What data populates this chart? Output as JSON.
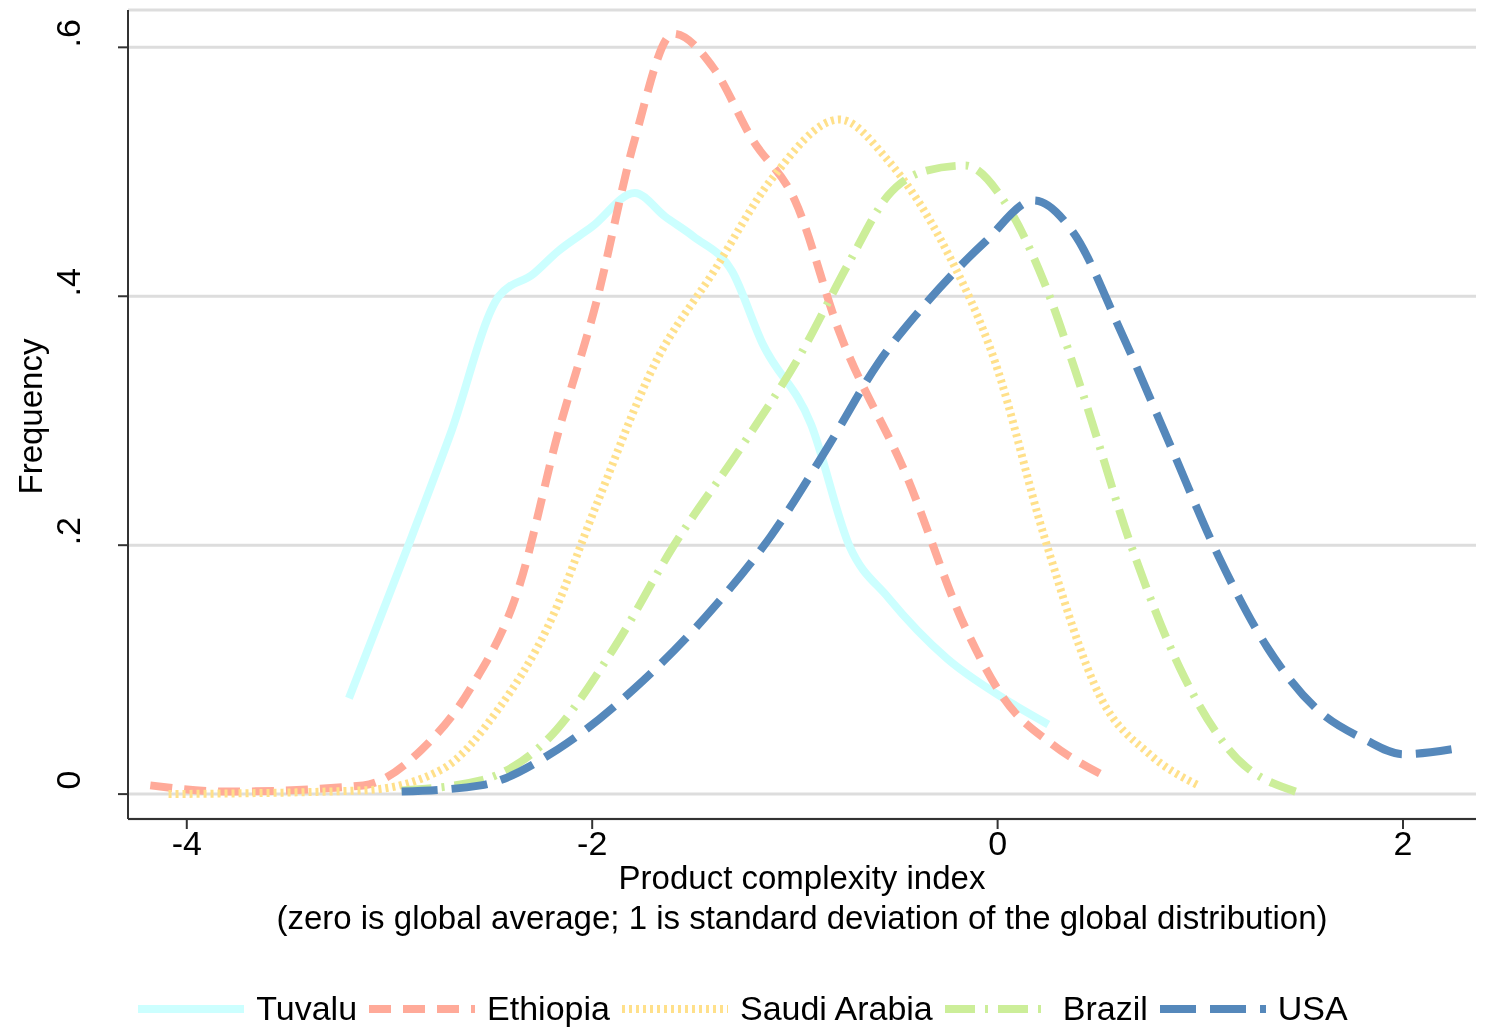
{
  "chart_data": {
    "type": "line",
    "xlabel": "Product complexity index\n(zero is global average; 1 is standard deviation of the global distribution)",
    "ylabel": "Frequency",
    "xlim": [
      -4.29,
      2.36
    ],
    "xticks": [
      -4,
      -2,
      0,
      2
    ],
    "ylim": [
      -0.02,
      0.63
    ],
    "yticks": [
      {
        "value": 0,
        "label": "0"
      },
      {
        "value": 0.2,
        "label": ".2"
      },
      {
        "value": 0.4,
        "label": ".4"
      },
      {
        "value": 0.6,
        "label": ".6"
      }
    ],
    "grid": "y",
    "legend": "bottom",
    "marker": "none",
    "series": [
      {
        "name": "Tuvalu",
        "color": "#ccffff",
        "line_style": "solid",
        "x": [
          -3.2,
          -2.89,
          -2.7,
          -2.46,
          -2.29,
          -2.17,
          -2.0,
          -1.79,
          -1.64,
          -1.5,
          -1.31,
          -1.16,
          -0.92,
          -0.73,
          -0.54,
          -0.25,
          0.03,
          0.25
        ],
        "values": [
          0.077,
          0.207,
          0.289,
          0.4,
          0.418,
          0.436,
          0.456,
          0.483,
          0.464,
          0.448,
          0.42,
          0.362,
          0.297,
          0.199,
          0.158,
          0.109,
          0.077,
          0.056
        ]
      },
      {
        "name": "Ethiopia",
        "color": "#ffaa99",
        "line_style": "dashed",
        "x": [
          -4.18,
          -3.8,
          -3.13,
          -2.84,
          -2.6,
          -2.36,
          -2.17,
          -1.98,
          -1.79,
          -1.6,
          -1.4,
          -1.21,
          -1.0,
          -0.78,
          -0.45,
          -0.16,
          0.03,
          0.27,
          0.51
        ],
        "values": [
          0.007,
          0.002,
          0.007,
          0.036,
          0.085,
          0.167,
          0.289,
          0.395,
          0.526,
          0.611,
          0.583,
          0.526,
          0.477,
          0.371,
          0.256,
          0.134,
          0.077,
          0.04,
          0.016
        ]
      },
      {
        "name": "Saudi Arabia",
        "color": "#ffe08a",
        "line_style": "dotted",
        "x": [
          -4.09,
          -3.13,
          -2.74,
          -2.46,
          -2.22,
          -1.98,
          -1.69,
          -1.4,
          -1.12,
          -0.78,
          -0.54,
          -0.25,
          -0.01,
          0.23,
          0.51,
          0.75,
          0.99
        ],
        "values": [
          0,
          0.003,
          0.02,
          0.069,
          0.134,
          0.232,
          0.346,
          0.42,
          0.493,
          0.542,
          0.509,
          0.436,
          0.346,
          0.207,
          0.077,
          0.032,
          0.007
        ]
      },
      {
        "name": "Brazil",
        "color": "#ccee99",
        "line_style": "dashdot",
        "x": [
          -2.94,
          -2.55,
          -2.22,
          -1.89,
          -1.6,
          -1.26,
          -0.97,
          -0.73,
          -0.54,
          -0.35,
          -0.16,
          0.03,
          0.23,
          0.42,
          0.66,
          0.9,
          1.14,
          1.47
        ],
        "values": [
          0.003,
          0.011,
          0.044,
          0.118,
          0.199,
          0.28,
          0.354,
          0.428,
          0.481,
          0.501,
          0.505,
          0.477,
          0.411,
          0.322,
          0.199,
          0.101,
          0.036,
          0.002
        ]
      },
      {
        "name": "USA",
        "color": "#5588bb",
        "line_style": "longdash",
        "x": [
          -2.94,
          -2.55,
          -2.17,
          -1.79,
          -1.4,
          -1.12,
          -0.83,
          -0.59,
          -0.35,
          -0.06,
          0.18,
          0.37,
          0.61,
          0.85,
          1.09,
          1.33,
          1.57,
          1.81,
          2.0,
          2.24
        ],
        "values": [
          0.002,
          0.007,
          0.036,
          0.085,
          0.15,
          0.207,
          0.281,
          0.346,
          0.395,
          0.444,
          0.477,
          0.452,
          0.371,
          0.281,
          0.191,
          0.118,
          0.069,
          0.044,
          0.032,
          0.036
        ]
      }
    ]
  }
}
